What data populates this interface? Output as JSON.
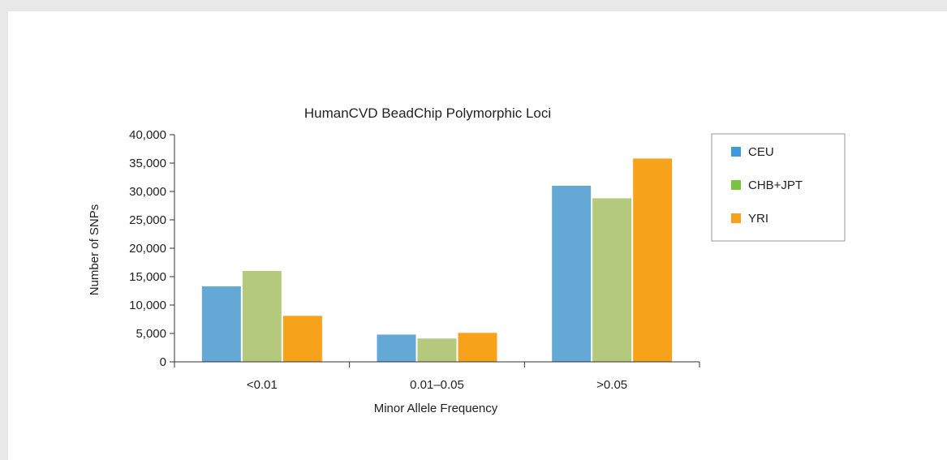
{
  "chart_data": {
    "type": "bar",
    "title": "HumanCVD BeadChip Polymorphic Loci",
    "xlabel": "Minor Allele Frequency",
    "ylabel": "Number of SNPs",
    "categories": [
      "<0.01",
      "0.01–0.05",
      ">0.05"
    ],
    "ylim": [
      0,
      40000
    ],
    "yticks": [
      0,
      5000,
      10000,
      15000,
      20000,
      25000,
      30000,
      35000,
      40000
    ],
    "ytick_labels": [
      "0",
      "5,000",
      "10,000",
      "15,000",
      "20,000",
      "25,000",
      "30,000",
      "35,000",
      "40,000"
    ],
    "grid": false,
    "legend_position": "right",
    "series": [
      {
        "name": "CEU",
        "values": [
          13300,
          4800,
          31000
        ],
        "color": "#64a9d6"
      },
      {
        "name": "CHB+JPT",
        "values": [
          16000,
          4100,
          28800
        ],
        "color": "#b4c97c"
      },
      {
        "name": "YRI",
        "values": [
          8100,
          5100,
          35800
        ],
        "color": "#f7a21b"
      }
    ],
    "legend_swatch_colors": [
      "#3d9bd9",
      "#7cc242",
      "#f7a21b"
    ]
  }
}
